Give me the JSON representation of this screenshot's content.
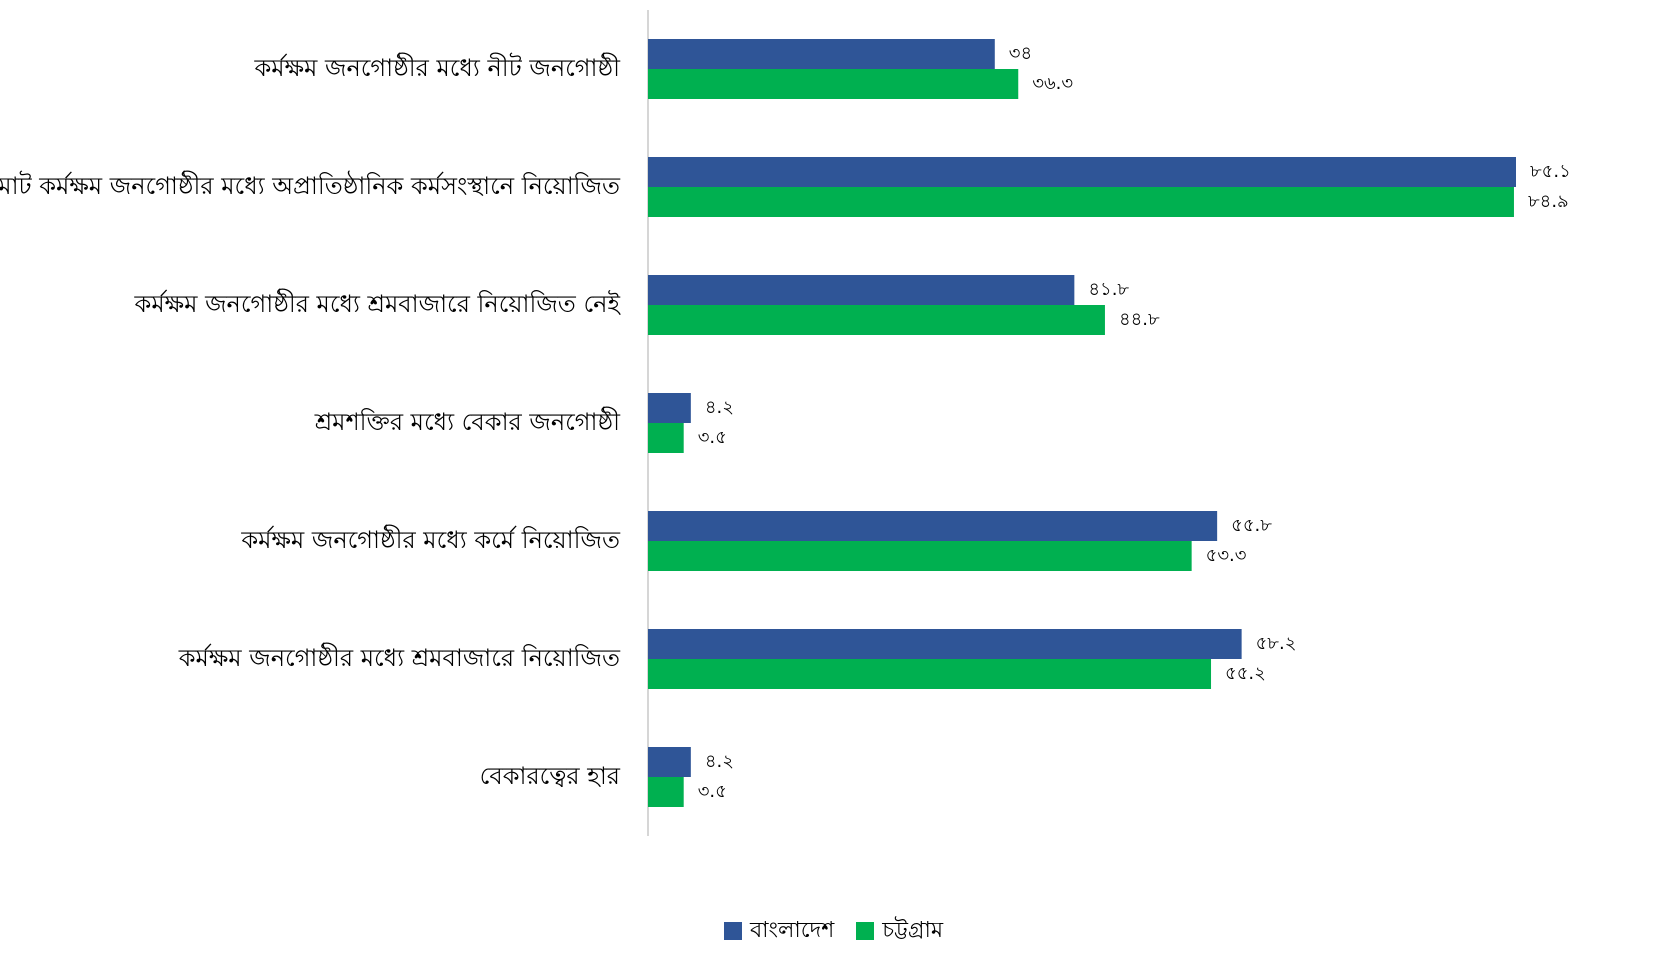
{
  "chart_data": {
    "type": "bar",
    "orientation": "horizontal",
    "categories": [
      "কর্মক্ষম জনগোষ্ঠীর মধ্যে নীট জনগোষ্ঠী",
      "মোট কর্মক্ষম জনগোষ্ঠীর মধ্যে অপ্রাতিষ্ঠানিক কর্মসংস্থানে নিয়োজিত",
      "কর্মক্ষম জনগোষ্ঠীর মধ্যে শ্রমবাজারে নিয়োজিত নেই",
      "শ্রমশক্তির মধ্যে বেকার জনগোষ্ঠী",
      "কর্মক্ষম জনগোষ্ঠীর মধ্যে কর্মে নিয়োজিত",
      "কর্মক্ষম জনগোষ্ঠীর মধ্যে শ্রমবাজারে নিয়োজিত",
      "বেকারত্বের হার"
    ],
    "series": [
      {
        "name": "বাংলাদেশ",
        "color": "#2F5597",
        "values": [
          34,
          85.1,
          41.8,
          4.2,
          55.8,
          58.2,
          4.2
        ],
        "labels": [
          "৩৪",
          "৮৫.১",
          "৪১.৮",
          "৪.২",
          "৫৫.৮",
          "৫৮.২",
          "৪.২"
        ]
      },
      {
        "name": "চট্টগ্রাম",
        "color": "#00B050",
        "values": [
          36.3,
          84.9,
          44.8,
          3.5,
          53.3,
          55.2,
          3.5
        ],
        "labels": [
          "৩৬.৩",
          "৮৪.৯",
          "৪৪.৮",
          "৩.৫",
          "৫৩.৩",
          "৫৫.২",
          "৩.৫"
        ]
      }
    ],
    "xlim": [
      0,
      85.1
    ],
    "grid": false,
    "legend_position": "bottom"
  }
}
